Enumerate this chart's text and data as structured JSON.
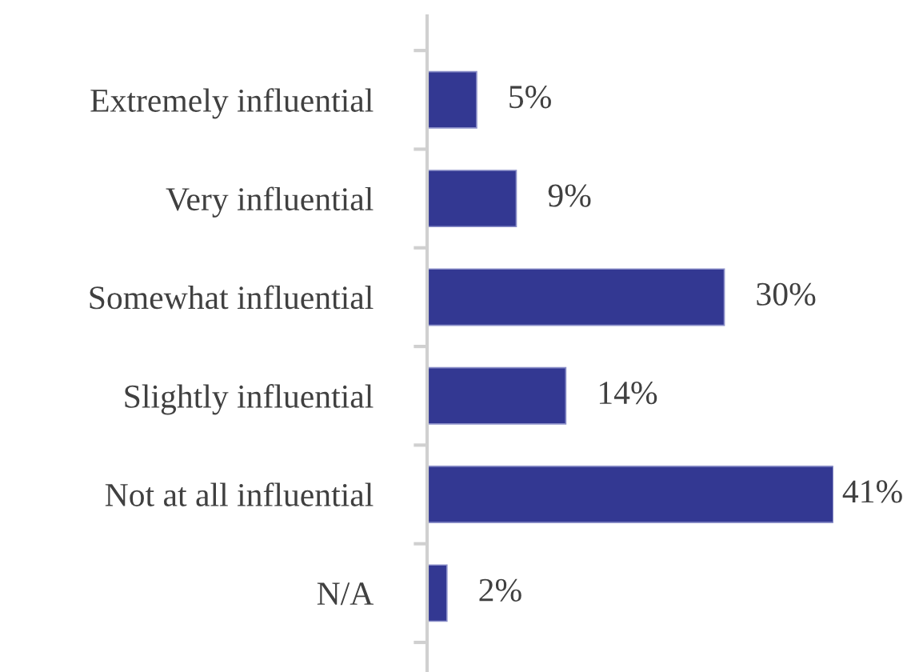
{
  "chart_data": {
    "type": "bar",
    "orientation": "horizontal",
    "categories": [
      "Extremely influential",
      "Very influential",
      "Somewhat influential",
      "Slightly influential",
      "Not at all influential",
      "N/A"
    ],
    "values": [
      5,
      9,
      30,
      14,
      41,
      2
    ],
    "value_labels": [
      "5%",
      "9%",
      "30%",
      "14%",
      "41%",
      "2%"
    ],
    "color": "#333892",
    "grid": false,
    "legend": false
  }
}
